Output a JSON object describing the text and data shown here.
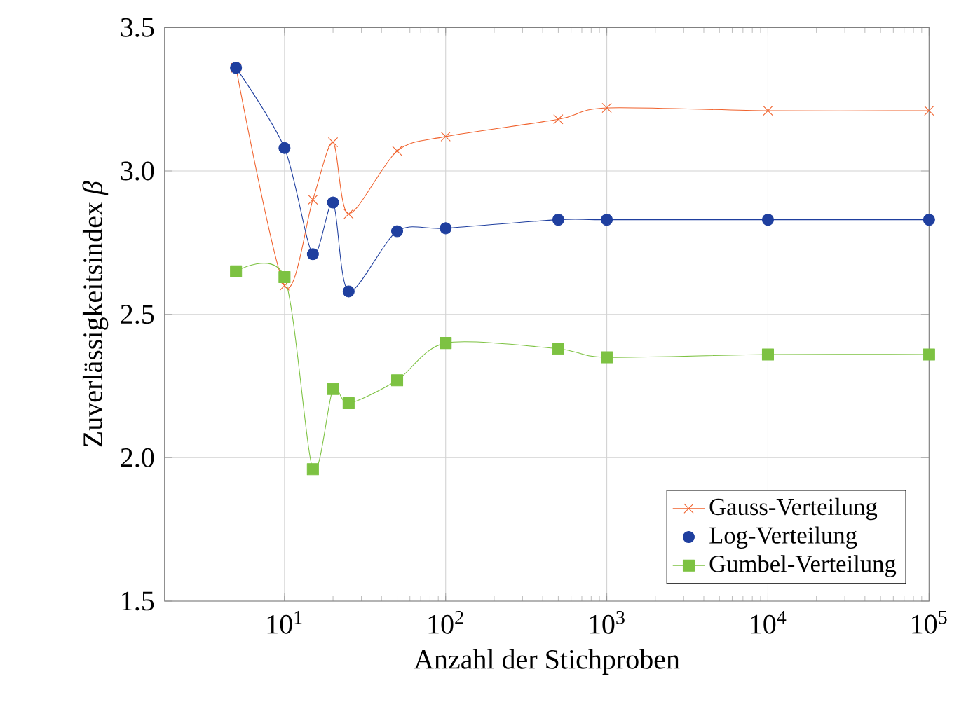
{
  "chart_data": {
    "type": "line",
    "xlabel": "Anzahl der Stichproben",
    "ylabel": "Zuverlässigkeitsindex *β*",
    "x": [
      5,
      10,
      15,
      20,
      25,
      50,
      100,
      500,
      1000,
      10000,
      100000
    ],
    "series": [
      {
        "name": "Gauss-Verteilung",
        "color": "#f0622d",
        "marker": "cross",
        "values": [
          3.36,
          2.6,
          2.9,
          3.1,
          2.85,
          3.07,
          3.12,
          3.18,
          3.22,
          3.21,
          3.21
        ]
      },
      {
        "name": "Log-Verteilung",
        "color": "#1f3f9f",
        "marker": "circle",
        "values": [
          3.36,
          3.08,
          2.71,
          2.89,
          2.58,
          2.79,
          2.8,
          2.83,
          2.83,
          2.83,
          2.83
        ]
      },
      {
        "name": "Gumbel-Verteilung",
        "color": "#7dc242",
        "marker": "square",
        "values": [
          2.65,
          2.63,
          1.96,
          2.24,
          2.19,
          2.27,
          2.4,
          2.38,
          2.35,
          2.36,
          2.36
        ]
      }
    ],
    "log": "x",
    "xlim": [
      1.8,
      100000
    ],
    "xticks": [
      {
        "value": 10,
        "label": "10$^{1}$"
      },
      {
        "value": 100,
        "label": "10$^{2}$"
      },
      {
        "value": 1000,
        "label": "10$^{3}$"
      },
      {
        "value": 10000,
        "label": "10$^{4}$"
      },
      {
        "value": 100000,
        "label": "10$^{5}$"
      }
    ],
    "ylim": [
      1.5,
      3.5
    ],
    "yticks": [
      1.5,
      {
        "value": 2,
        "label": "2.0"
      },
      2.5,
      {
        "value": 3,
        "label": "3.0"
      },
      3.5
    ],
    "grid": true,
    "legend": "bottom right",
    "line_style": "solid"
  }
}
